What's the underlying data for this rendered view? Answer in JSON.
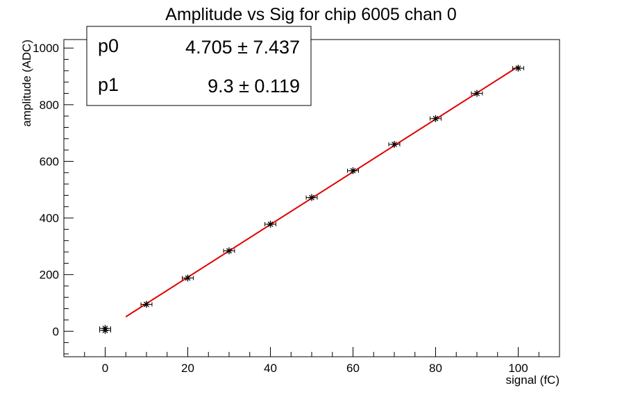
{
  "chart_data": {
    "type": "scatter",
    "title": "Amplitude vs Sig for chip 6005 chan 0",
    "xlabel": "signal (fC)",
    "ylabel": "amplitude (ADC)",
    "xlim": [
      -10,
      110
    ],
    "ylim": [
      -90,
      1030
    ],
    "x_ticks": [
      0,
      20,
      40,
      60,
      80,
      100
    ],
    "y_ticks": [
      0,
      200,
      400,
      600,
      800,
      1000
    ],
    "grid": false,
    "legend": "none",
    "series": [
      {
        "x": [
          0,
          0,
          10,
          20,
          30,
          40,
          50,
          60,
          70,
          80,
          90,
          100
        ],
        "y": [
          3,
          10,
          95,
          188,
          284,
          378,
          472,
          567,
          660,
          751,
          840,
          929
        ],
        "x_error": 1,
        "marker": "star",
        "color": "#000000"
      }
    ],
    "fit": {
      "type": "line",
      "x_range": [
        5,
        100
      ],
      "p0": 4.705,
      "p1": 9.3,
      "color": "#e00000"
    },
    "stats_box": {
      "rows": [
        {
          "name": "p0",
          "value": "4.705 ± 7.437"
        },
        {
          "name": "p1",
          "value": "9.3 ± 0.119"
        }
      ]
    }
  }
}
